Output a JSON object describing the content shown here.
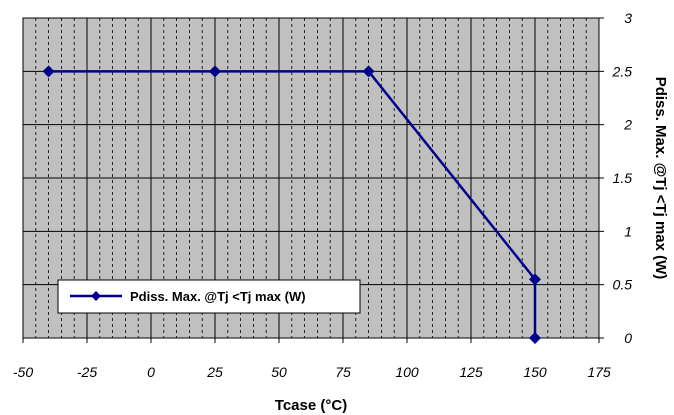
{
  "chart_data": {
    "type": "line",
    "xlabel": "Tcase (°C)",
    "ylabel": "Pdiss. Max. @Tj <Tj max (W)",
    "xlim": [
      -50,
      175
    ],
    "ylim": [
      0,
      3
    ],
    "x_ticks": [
      "-50",
      "-25",
      "0",
      "25",
      "50",
      "75",
      "100",
      "125",
      "150",
      "175"
    ],
    "y_ticks": [
      "0",
      "0.5",
      "1",
      "1.5",
      "2",
      "2.5",
      "3"
    ],
    "x_tick_values": [
      -50,
      -25,
      0,
      25,
      50,
      75,
      100,
      125,
      150,
      175
    ],
    "y_tick_values": [
      0,
      0.5,
      1,
      1.5,
      2,
      2.5,
      3
    ],
    "grid": true,
    "legend_position": "bottom-left",
    "series": [
      {
        "name": "Pdiss. Max. @Tj <Tj max (W)",
        "color": "#00008b",
        "marker": "diamond",
        "x": [
          -40,
          25,
          85,
          150,
          150
        ],
        "y": [
          2.5,
          2.5,
          2.5,
          0.55,
          0
        ]
      }
    ],
    "plot_background": "#c0c0c0"
  }
}
